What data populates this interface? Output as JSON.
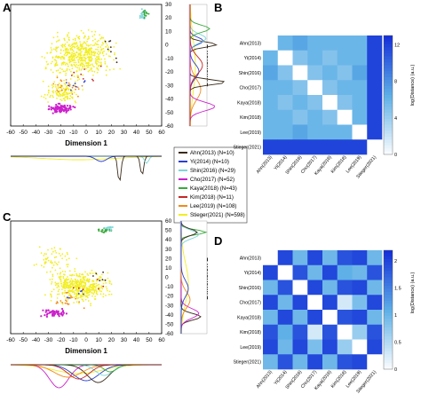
{
  "panels": {
    "A": {
      "letter": "A",
      "xlabel": "Dimension 1",
      "ylabel": "Dimension 2",
      "xticks": [
        -60,
        -50,
        -40,
        -30,
        -20,
        -10,
        0,
        10,
        20,
        30,
        40,
        50,
        60
      ],
      "yticks": [
        30,
        20,
        10,
        0,
        -10,
        -20,
        -30,
        -40,
        -50,
        -60
      ],
      "groups_present": [
        "Ahn",
        "Yi",
        "Shin",
        "Cho",
        "Kaya",
        "Kim",
        "Lee",
        "Stieger"
      ]
    },
    "B": {
      "letter": "B",
      "colorbar_label": "log(Distance) (a.u.)",
      "colorbar_ticks": [
        0,
        4,
        8,
        12
      ],
      "colorbar_max": 13,
      "matrix": [
        [
          0,
          6,
          7,
          6,
          6,
          6,
          6,
          12
        ],
        [
          6,
          0,
          5,
          6,
          5,
          6,
          6,
          12
        ],
        [
          7,
          5,
          0,
          5,
          6,
          5,
          7,
          12
        ],
        [
          6,
          6,
          5,
          0,
          5,
          6,
          6,
          12
        ],
        [
          6,
          5,
          6,
          5,
          0,
          5,
          6,
          12
        ],
        [
          6,
          6,
          5,
          6,
          5,
          0,
          6,
          12
        ],
        [
          6,
          6,
          7,
          6,
          6,
          6,
          0,
          12
        ],
        [
          12,
          12,
          12,
          12,
          12,
          12,
          12,
          0
        ]
      ]
    },
    "C": {
      "letter": "C",
      "xlabel": "Dimension 1",
      "ylabel": "Dimension 2",
      "xticks": [
        -60,
        -50,
        -40,
        -30,
        -20,
        -10,
        0,
        10,
        20,
        30,
        40,
        50,
        60
      ],
      "yticks": [
        60,
        50,
        40,
        30,
        20,
        10,
        0,
        -10,
        -20,
        -30,
        -40,
        -50,
        -60
      ]
    },
    "D": {
      "letter": "D",
      "colorbar_label": "log(Distance) (a.u.)",
      "colorbar_ticks": [
        0,
        0.5,
        1,
        1.5,
        2
      ],
      "colorbar_max": 2.2,
      "matrix": [
        [
          0.0,
          2.0,
          1.0,
          2.0,
          1.0,
          1.9,
          2.0,
          1.0
        ],
        [
          2.0,
          0.0,
          1.9,
          1.0,
          2.0,
          1.1,
          1.0,
          1.9
        ],
        [
          1.0,
          1.9,
          0.0,
          2.0,
          1.0,
          1.9,
          2.0,
          1.0
        ],
        [
          2.0,
          1.0,
          2.0,
          0.0,
          2.0,
          0.3,
          0.9,
          2.0
        ],
        [
          1.0,
          2.0,
          1.0,
          2.0,
          0.0,
          1.9,
          2.0,
          1.0
        ],
        [
          1.9,
          1.1,
          1.9,
          0.3,
          1.9,
          0.0,
          0.7,
          1.9
        ],
        [
          2.0,
          1.0,
          2.0,
          0.9,
          2.0,
          0.7,
          0.0,
          2.0
        ],
        [
          1.0,
          1.9,
          1.0,
          2.0,
          1.0,
          1.9,
          2.0,
          0.0
        ]
      ]
    }
  },
  "matrix_labels": [
    "Ahn(2013)",
    "Yi(2014)",
    "Shin(2016)",
    "Cho(2017)",
    "Kaya(2018)",
    "Kim(2018)",
    "Lee(2019)",
    "Stieger(2021)"
  ],
  "legend": [
    {
      "label": "Ahn(2013) (N=10)",
      "color": "#3a2a1a"
    },
    {
      "label": "Yi(2014) (N=10)",
      "color": "#2b3fcf"
    },
    {
      "label": "Shin(2016) (N=29)",
      "color": "#7fd6d8"
    },
    {
      "label": "Cho(2017) (N=52)",
      "color": "#cc22cc"
    },
    {
      "label": "Kaya(2018) (N=43)",
      "color": "#3aa93a"
    },
    {
      "label": "Kim(2018) (N=11)",
      "color": "#c62828"
    },
    {
      "label": "Lee(2019) (N=108)",
      "color": "#f08a1a"
    },
    {
      "label": "Stieger(2021) (N=598)",
      "color": "#f2ee22"
    }
  ],
  "colors": {
    "heat_low": "#ffffff",
    "heat_mid": "#5fb0e6",
    "heat_high": "#1530d8"
  },
  "chart_data": [
    {
      "type": "scatter",
      "panel": "A",
      "xlabel": "Dimension 1",
      "ylabel": "Dimension 2",
      "xlim": [
        -60,
        60
      ],
      "ylim": [
        -60,
        30
      ],
      "note_only_visible_labels": true
    },
    {
      "type": "heatmap",
      "panel": "B",
      "categories": [
        "Ahn(2013)",
        "Yi(2014)",
        "Shin(2016)",
        "Cho(2017)",
        "Kaya(2018)",
        "Kim(2018)",
        "Lee(2019)",
        "Stieger(2021)"
      ],
      "colorbar_label": "log(Distance) (a.u.)",
      "range": [
        0,
        13
      ]
    },
    {
      "type": "scatter",
      "panel": "C",
      "xlabel": "Dimension 1",
      "ylabel": "Dimension 2",
      "xlim": [
        -60,
        60
      ],
      "ylim": [
        -60,
        60
      ]
    },
    {
      "type": "heatmap",
      "panel": "D",
      "categories": [
        "Ahn(2013)",
        "Yi(2014)",
        "Shin(2016)",
        "Cho(2017)",
        "Kaya(2018)",
        "Kim(2018)",
        "Lee(2019)",
        "Stieger(2021)"
      ],
      "colorbar_label": "log(Distance) (a.u.)",
      "range": [
        0,
        2.2
      ]
    }
  ]
}
